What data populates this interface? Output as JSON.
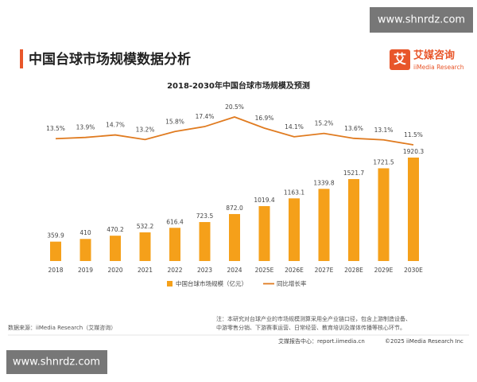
{
  "header": {
    "title": "中国台球市场规模数据分析",
    "logo_icon": "艾",
    "logo_name": "艾媒咨询",
    "logo_sub": "iiMedia Research"
  },
  "watermarks": [
    "www.shnrdz.com",
    "www.shnrdz.com"
  ],
  "chart_data": {
    "type": "bar",
    "title": "2018-2030年中国台球市场规模及预测",
    "categories": [
      "2018",
      "2019",
      "2020",
      "2021",
      "2022",
      "2023",
      "2024",
      "2025E",
      "2026E",
      "2027E",
      "2028E",
      "2029E",
      "2030E"
    ],
    "series": [
      {
        "name": "中国台球市场规模（亿元）",
        "type": "bar",
        "color": "#f5a01a",
        "values": [
          359.9,
          410,
          470.2,
          532.2,
          616.4,
          723.5,
          872.0,
          1019.4,
          1163.1,
          1339.8,
          1521.7,
          1721.5,
          1920.3
        ],
        "value_labels": [
          "359.9",
          "410",
          "470.2",
          "532.2",
          "616.4",
          "723.5",
          "872.0",
          "1019.4",
          "1163.1",
          "1339.8",
          "1521.7",
          "1721.5",
          "1920.3"
        ]
      },
      {
        "name": "同比增长率",
        "type": "line",
        "color": "#e07b20",
        "values": [
          13.5,
          13.9,
          14.7,
          13.2,
          15.8,
          17.4,
          20.5,
          16.9,
          14.1,
          15.2,
          13.6,
          13.1,
          11.5
        ],
        "value_labels": [
          "13.5%",
          "13.9%",
          "14.7%",
          "13.2%",
          "15.8%",
          "17.4%",
          "20.5%",
          "16.9%",
          "14.1%",
          "15.2%",
          "13.6%",
          "13.1%",
          "11.5%"
        ]
      }
    ]
  },
  "footer": {
    "note": [
      "注：本研究对台球产业的市场规模测算采用全产业链口径，包含上游制造设备、",
      "中游零售分销、下游赛事运营、日常经营、教育培训及媒体传播等核心环节。"
    ],
    "source": "数据来源：iiMedia Research（艾媒咨询）",
    "center": "艾媒报告中心：report.iimedia.cn",
    "copyright": "©2025  iiMedia Research  Inc"
  }
}
